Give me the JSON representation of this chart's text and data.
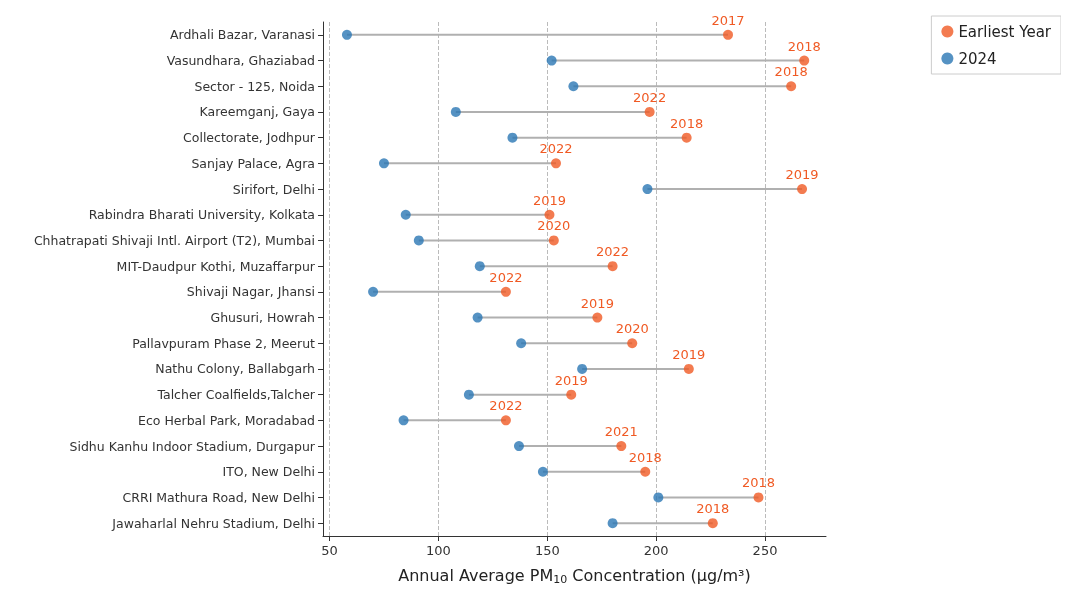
{
  "chart_data": {
    "type": "scatter",
    "orientation": "horizontal",
    "xlabel": "Annual Average PM$_{10}$ Concentration (μg/m³)",
    "categories": [
      "Ardhali Bazar, Varanasi",
      "Vasundhara, Ghaziabad",
      "Sector - 125, Noida",
      "Kareemganj, Gaya",
      "Collectorate, Jodhpur",
      "Sanjay Palace, Agra",
      "Sirifort, Delhi",
      "Rabindra Bharati University, Kolkata",
      "Chhatrapati Shivaji Intl. Airport (T2), Mumbai",
      "MIT-Daudpur Kothi, Muzaffarpur",
      "Shivaji Nagar, Jhansi",
      "Ghusuri, Howrah",
      "Pallavpuram Phase 2, Meerut",
      "Nathu Colony, Ballabgarh",
      "Talcher Coalfields,Talcher",
      "Eco Herbal Park, Moradabad",
      "Sidhu Kanhu Indoor Stadium, Durgapur",
      "ITO, New Delhi",
      "CRRI Mathura Road, New Delhi",
      "Jawaharlal Nehru Stadium, Delhi"
    ],
    "series": [
      {
        "name": "Earliest Year",
        "color": "#f05a24",
        "values": [
          233,
          268,
          262,
          197,
          214,
          154,
          267,
          151,
          153,
          180,
          131,
          173,
          189,
          215,
          161,
          131,
          184,
          195,
          247,
          226
        ]
      },
      {
        "name": "2024",
        "color": "#2a77b4",
        "values": [
          58,
          152,
          162,
          108,
          134,
          75,
          196,
          85,
          91,
          119,
          70,
          118,
          138,
          166,
          114,
          84,
          137,
          148,
          201,
          180
        ]
      }
    ],
    "annotations": [
      {
        "text": "2017",
        "x": 233,
        "y": "Ardhali Bazar, Varanasi"
      },
      {
        "text": "2018",
        "x": 268,
        "y": "Vasundhara, Ghaziabad"
      },
      {
        "text": "2018",
        "x": 262,
        "y": "Sector - 125, Noida"
      },
      {
        "text": "2022",
        "x": 197,
        "y": "Kareemganj, Gaya"
      },
      {
        "text": "2018",
        "x": 214,
        "y": "Collectorate, Jodhpur"
      },
      {
        "text": "2022",
        "x": 154,
        "y": "Sanjay Palace, Agra"
      },
      {
        "text": "2019",
        "x": 267,
        "y": "Sirifort, Delhi"
      },
      {
        "text": "2019",
        "x": 151,
        "y": "Rabindra Bharati University, Kolkata"
      },
      {
        "text": "2020",
        "x": 153,
        "y": "Chhatrapati Shivaji Intl. Airport (T2), Mumbai"
      },
      {
        "text": "2022",
        "x": 180,
        "y": "MIT-Daudpur Kothi, Muzaffarpur"
      },
      {
        "text": "2022",
        "x": 131,
        "y": "Shivaji Nagar, Jhansi"
      },
      {
        "text": "2019",
        "x": 173,
        "y": "Ghusuri, Howrah"
      },
      {
        "text": "2020",
        "x": 189,
        "y": "Pallavpuram Phase 2, Meerut"
      },
      {
        "text": "2019",
        "x": 215,
        "y": "Nathu Colony, Ballabgarh"
      },
      {
        "text": "2019",
        "x": 161,
        "y": "Talcher Coalfields,Talcher"
      },
      {
        "text": "2022",
        "x": 131,
        "y": "Eco Herbal Park, Moradabad"
      },
      {
        "text": "2021",
        "x": 184,
        "y": "Sidhu Kanhu Indoor Stadium, Durgapur"
      },
      {
        "text": "2018",
        "x": 195,
        "y": "ITO, New Delhi"
      },
      {
        "text": "2018",
        "x": 247,
        "y": "CRRI Mathura Road, New Delhi"
      },
      {
        "text": "2018",
        "x": 226,
        "y": "Jawaharlal Nehru Stadium, Delhi"
      }
    ],
    "xlim": [
      47,
      278
    ],
    "xticks": [
      50,
      100,
      150,
      200,
      250
    ],
    "grid": "x",
    "legend": "top right",
    "marker": "circle"
  }
}
